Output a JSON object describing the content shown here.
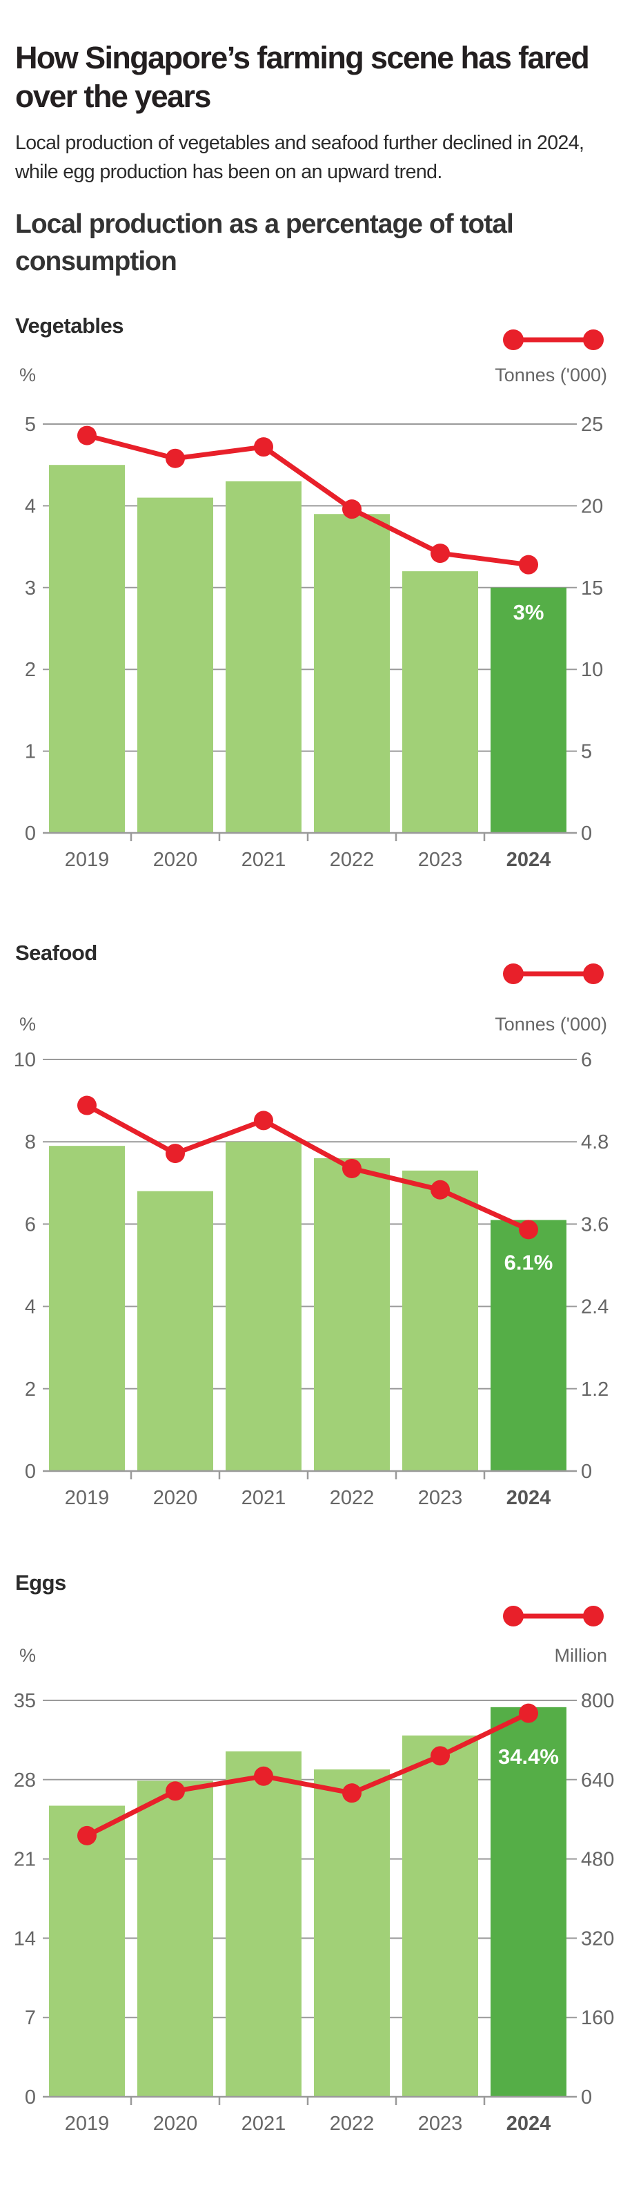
{
  "header": {
    "title": "How Singapore’s farming scene has fared over the years",
    "subtitle": "Local production of vegetables and seafood further declined in 2024, while egg production has been on an upward trend.",
    "section_title": "Local production as a percentage of total consumption"
  },
  "colors": {
    "bar": "#a1d077",
    "bar_highlight": "#55ae47",
    "line": "#e8202a",
    "grid": "#9a9a9a",
    "axis_text": "#666666"
  },
  "chart_data": [
    {
      "type": "bar+line",
      "title": "Vegetables",
      "categories": [
        "2019",
        "2020",
        "2021",
        "2022",
        "2023",
        "2024"
      ],
      "highlight_category": "2024",
      "bar_axis": {
        "label": "%",
        "ylim": [
          0,
          5
        ],
        "ticks": [
          "0",
          "1",
          "2",
          "3",
          "4",
          "5"
        ]
      },
      "line_axis": {
        "label": "Tonnes ('000)",
        "ylim": [
          0,
          25
        ],
        "ticks": [
          "0",
          "5",
          "10",
          "15",
          "20",
          "25"
        ]
      },
      "bars": [
        4.5,
        4.1,
        4.3,
        3.9,
        3.2,
        3.0
      ],
      "line": [
        24.3,
        22.9,
        23.6,
        19.8,
        17.1,
        16.4
      ],
      "data_label": "3%",
      "grid": true
    },
    {
      "type": "bar+line",
      "title": "Seafood",
      "categories": [
        "2019",
        "2020",
        "2021",
        "2022",
        "2023",
        "2024"
      ],
      "highlight_category": "2024",
      "bar_axis": {
        "label": "%",
        "ylim": [
          0,
          10
        ],
        "ticks": [
          "0",
          "2",
          "4",
          "6",
          "8",
          "10"
        ]
      },
      "line_axis": {
        "label": "Tonnes ('000)",
        "ylim": [
          0,
          6
        ],
        "ticks": [
          "0",
          "1.2",
          "2.4",
          "3.6",
          "4.8",
          "6"
        ]
      },
      "bars": [
        7.9,
        6.8,
        8.0,
        7.6,
        7.3,
        6.1
      ],
      "line": [
        5.33,
        4.63,
        5.11,
        4.41,
        4.1,
        3.52
      ],
      "data_label": "6.1%",
      "grid": true
    },
    {
      "type": "bar+line",
      "title": "Eggs",
      "categories": [
        "2019",
        "2020",
        "2021",
        "2022",
        "2023",
        "2024"
      ],
      "highlight_category": "2024",
      "bar_axis": {
        "label": "%",
        "ylim": [
          0,
          35
        ],
        "ticks": [
          "0",
          "7",
          "14",
          "21",
          "28",
          "35"
        ]
      },
      "line_axis": {
        "label": "Million",
        "ylim": [
          0,
          800
        ],
        "ticks": [
          "0",
          "160",
          "320",
          "480",
          "640",
          "800"
        ]
      },
      "bars": [
        25.7,
        27.9,
        30.5,
        28.9,
        31.9,
        34.4
      ],
      "line": [
        527,
        617,
        647,
        613,
        688,
        774
      ],
      "data_label": "34.4%",
      "grid": true
    }
  ]
}
